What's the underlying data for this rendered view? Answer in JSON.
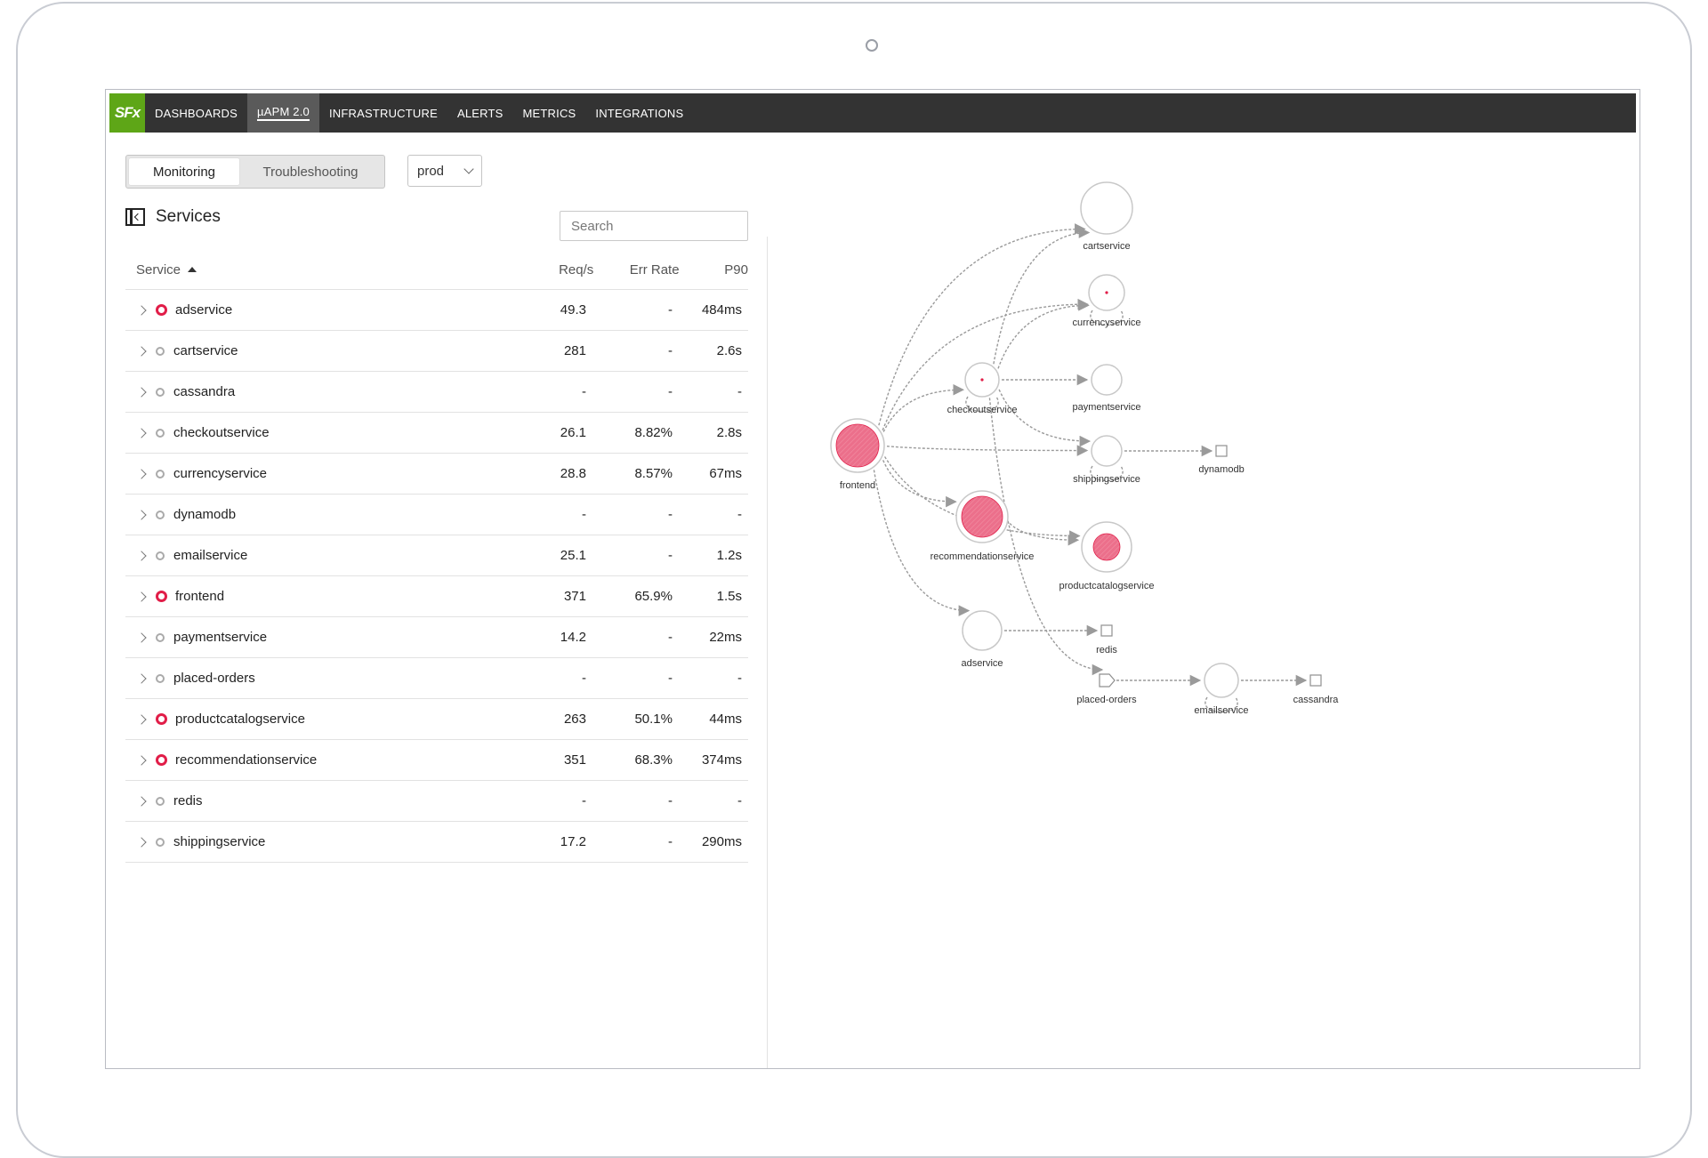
{
  "nav": {
    "logo": "SFx",
    "items": [
      {
        "label": "DASHBOARDS",
        "active": false
      },
      {
        "label": "µAPM 2.0",
        "active": true
      },
      {
        "label": "INFRASTRUCTURE",
        "active": false
      },
      {
        "label": "ALERTS",
        "active": false
      },
      {
        "label": "METRICS",
        "active": false
      },
      {
        "label": "INTEGRATIONS",
        "active": false
      }
    ]
  },
  "modes": {
    "monitoring": "Monitoring",
    "troubleshooting": "Troubleshooting",
    "selected": "Monitoring"
  },
  "environment": {
    "value": "prod"
  },
  "services_panel": {
    "title": "Services",
    "search_placeholder": "Search",
    "columns": {
      "service": "Service",
      "req": "Req/s",
      "err": "Err Rate",
      "p90": "P90"
    },
    "sort": {
      "column": "Service",
      "direction": "ascending"
    },
    "rows": [
      {
        "name": "adservice",
        "req": "49.3",
        "err": "-",
        "p90": "484ms",
        "error": true
      },
      {
        "name": "cartservice",
        "req": "281",
        "err": "-",
        "p90": "2.6s",
        "error": false
      },
      {
        "name": "cassandra",
        "req": "-",
        "err": "-",
        "p90": "-",
        "error": false
      },
      {
        "name": "checkoutservice",
        "req": "26.1",
        "err": "8.82%",
        "p90": "2.8s",
        "error": false
      },
      {
        "name": "currencyservice",
        "req": "28.8",
        "err": "8.57%",
        "p90": "67ms",
        "error": false
      },
      {
        "name": "dynamodb",
        "req": "-",
        "err": "-",
        "p90": "-",
        "error": false
      },
      {
        "name": "emailservice",
        "req": "25.1",
        "err": "-",
        "p90": "1.2s",
        "error": false
      },
      {
        "name": "frontend",
        "req": "371",
        "err": "65.9%",
        "p90": "1.5s",
        "error": true
      },
      {
        "name": "paymentservice",
        "req": "14.2",
        "err": "-",
        "p90": "22ms",
        "error": false
      },
      {
        "name": "placed-orders",
        "req": "-",
        "err": "-",
        "p90": "-",
        "error": false
      },
      {
        "name": "productcatalogservice",
        "req": "263",
        "err": "50.1%",
        "p90": "44ms",
        "error": true
      },
      {
        "name": "recommendationservice",
        "req": "351",
        "err": "68.3%",
        "p90": "374ms",
        "error": true
      },
      {
        "name": "redis",
        "req": "-",
        "err": "-",
        "p90": "-",
        "error": false
      },
      {
        "name": "shippingservice",
        "req": "17.2",
        "err": "-",
        "p90": "290ms",
        "error": false
      }
    ]
  },
  "service_map": {
    "colors": {
      "error_fill": "#ec6f8b",
      "error_dot": "#e11d48",
      "edge": "#9a9a9a",
      "node_border": "#c8c8c8"
    },
    "nodes": [
      {
        "id": "frontend",
        "label": "frontend",
        "kind": "service",
        "error_level": "high"
      },
      {
        "id": "cartservice",
        "label": "cartservice",
        "kind": "service",
        "error_level": "none"
      },
      {
        "id": "currencyservice",
        "label": "currencyservice",
        "kind": "service",
        "error_level": "low"
      },
      {
        "id": "checkoutservice",
        "label": "checkoutservice",
        "kind": "service",
        "error_level": "low"
      },
      {
        "id": "paymentservice",
        "label": "paymentservice",
        "kind": "service",
        "error_level": "none"
      },
      {
        "id": "shippingservice",
        "label": "shippingservice",
        "kind": "service",
        "error_level": "none"
      },
      {
        "id": "dynamodb",
        "label": "dynamodb",
        "kind": "database",
        "error_level": "none"
      },
      {
        "id": "recommendationservice",
        "label": "recommendationservice",
        "kind": "service",
        "error_level": "high"
      },
      {
        "id": "productcatalogservice",
        "label": "productcatalogservice",
        "kind": "service",
        "error_level": "medium"
      },
      {
        "id": "adservice",
        "label": "adservice",
        "kind": "service",
        "error_level": "none"
      },
      {
        "id": "redis",
        "label": "redis",
        "kind": "database",
        "error_level": "none"
      },
      {
        "id": "placed-orders",
        "label": "placed-orders",
        "kind": "queue",
        "error_level": "none"
      },
      {
        "id": "emailservice",
        "label": "emailservice",
        "kind": "service",
        "error_level": "none"
      },
      {
        "id": "cassandra",
        "label": "cassandra",
        "kind": "database",
        "error_level": "none"
      }
    ],
    "edges": [
      [
        "frontend",
        "cartservice"
      ],
      [
        "frontend",
        "currencyservice"
      ],
      [
        "frontend",
        "checkoutservice"
      ],
      [
        "frontend",
        "shippingservice"
      ],
      [
        "frontend",
        "recommendationservice"
      ],
      [
        "frontend",
        "productcatalogservice"
      ],
      [
        "frontend",
        "adservice"
      ],
      [
        "checkoutservice",
        "cartservice"
      ],
      [
        "checkoutservice",
        "currencyservice"
      ],
      [
        "checkoutservice",
        "paymentservice"
      ],
      [
        "checkoutservice",
        "shippingservice"
      ],
      [
        "checkoutservice",
        "placed-orders"
      ],
      [
        "shippingservice",
        "dynamodb"
      ],
      [
        "recommendationservice",
        "productcatalogservice"
      ],
      [
        "adservice",
        "redis"
      ],
      [
        "placed-orders",
        "emailservice"
      ],
      [
        "emailservice",
        "cassandra"
      ]
    ]
  }
}
